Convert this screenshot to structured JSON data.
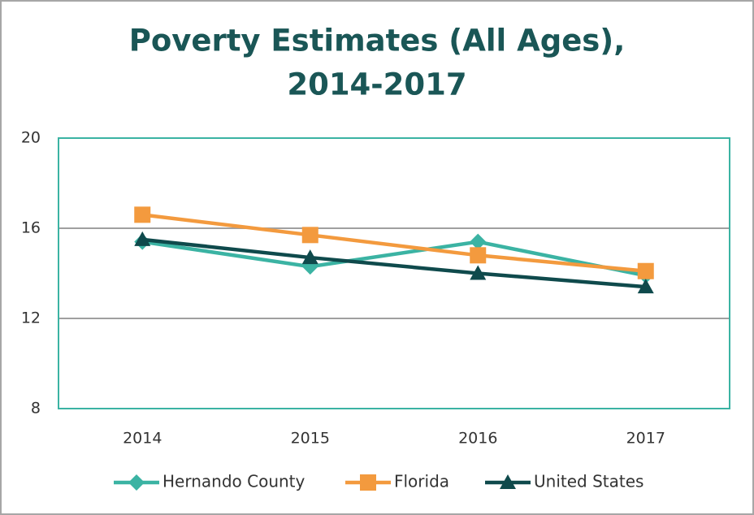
{
  "chart_data": {
    "type": "line",
    "title": [
      "Poverty Estimates (All Ages),",
      "2014-2017"
    ],
    "categories": [
      "2014",
      "2015",
      "2016",
      "2017"
    ],
    "series": [
      {
        "name": "Hernando County",
        "color": "#3bb3a3",
        "marker": "diamond",
        "values": [
          15.4,
          14.3,
          15.4,
          13.9
        ]
      },
      {
        "name": "Florida",
        "color": "#f39a3e",
        "marker": "square",
        "values": [
          16.6,
          15.7,
          14.8,
          14.1
        ]
      },
      {
        "name": "United States",
        "color": "#0f4a4c",
        "marker": "triangle",
        "values": [
          15.5,
          14.7,
          14.0,
          13.4
        ]
      }
    ],
    "ylim": [
      8,
      20
    ],
    "yticks": [
      8,
      12,
      16,
      20
    ],
    "grid": true,
    "legend": "bottom"
  }
}
